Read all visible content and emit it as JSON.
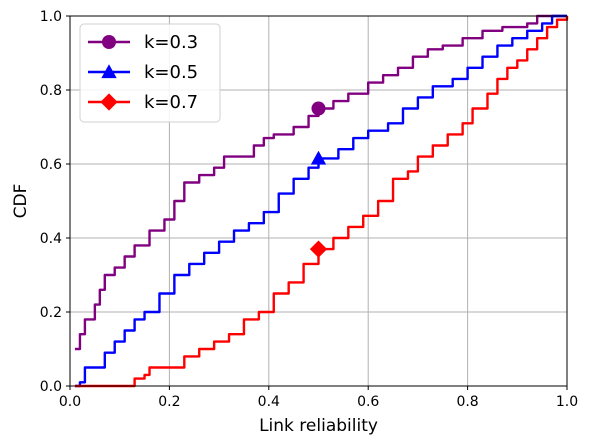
{
  "chart_data": {
    "type": "line",
    "xlabel": "Link reliability",
    "ylabel": "CDF",
    "xlim": [
      0.0,
      1.0
    ],
    "ylim": [
      0.0,
      1.0
    ],
    "x_ticks": [
      "0.0",
      "0.2",
      "0.4",
      "0.6",
      "0.8",
      "1.0"
    ],
    "y_ticks": [
      "0.0",
      "0.2",
      "0.4",
      "0.6",
      "0.8",
      "1.0"
    ],
    "grid": true,
    "legend_position": "top-left",
    "series": [
      {
        "name": "k=0.3",
        "color": "#800080",
        "marker": "circle",
        "marker_point": [
          0.5,
          0.75
        ],
        "points": [
          [
            0.01,
            0.1
          ],
          [
            0.02,
            0.14
          ],
          [
            0.03,
            0.18
          ],
          [
            0.05,
            0.22
          ],
          [
            0.06,
            0.26
          ],
          [
            0.07,
            0.3
          ],
          [
            0.09,
            0.32
          ],
          [
            0.11,
            0.35
          ],
          [
            0.13,
            0.38
          ],
          [
            0.16,
            0.42
          ],
          [
            0.19,
            0.45
          ],
          [
            0.21,
            0.5
          ],
          [
            0.23,
            0.55
          ],
          [
            0.26,
            0.57
          ],
          [
            0.29,
            0.59
          ],
          [
            0.31,
            0.62
          ],
          [
            0.35,
            0.62
          ],
          [
            0.37,
            0.65
          ],
          [
            0.39,
            0.67
          ],
          [
            0.41,
            0.68
          ],
          [
            0.45,
            0.7
          ],
          [
            0.48,
            0.73
          ],
          [
            0.5,
            0.75
          ],
          [
            0.53,
            0.77
          ],
          [
            0.56,
            0.79
          ],
          [
            0.6,
            0.82
          ],
          [
            0.63,
            0.84
          ],
          [
            0.66,
            0.86
          ],
          [
            0.69,
            0.89
          ],
          [
            0.72,
            0.91
          ],
          [
            0.75,
            0.92
          ],
          [
            0.79,
            0.94
          ],
          [
            0.83,
            0.96
          ],
          [
            0.87,
            0.97
          ],
          [
            0.92,
            0.98
          ],
          [
            0.94,
            1.0
          ],
          [
            1.0,
            1.0
          ]
        ]
      },
      {
        "name": "k=0.5",
        "color": "#0000ff",
        "marker": "triangle",
        "marker_point": [
          0.5,
          0.615
        ],
        "points": [
          [
            0.01,
            0.0
          ],
          [
            0.02,
            0.01
          ],
          [
            0.03,
            0.05
          ],
          [
            0.05,
            0.05
          ],
          [
            0.07,
            0.09
          ],
          [
            0.09,
            0.12
          ],
          [
            0.11,
            0.15
          ],
          [
            0.13,
            0.18
          ],
          [
            0.15,
            0.2
          ],
          [
            0.18,
            0.25
          ],
          [
            0.21,
            0.3
          ],
          [
            0.24,
            0.33
          ],
          [
            0.27,
            0.36
          ],
          [
            0.3,
            0.39
          ],
          [
            0.33,
            0.42
          ],
          [
            0.36,
            0.44
          ],
          [
            0.39,
            0.47
          ],
          [
            0.42,
            0.52
          ],
          [
            0.45,
            0.56
          ],
          [
            0.48,
            0.59
          ],
          [
            0.5,
            0.615
          ],
          [
            0.54,
            0.64
          ],
          [
            0.57,
            0.67
          ],
          [
            0.6,
            0.69
          ],
          [
            0.64,
            0.71
          ],
          [
            0.67,
            0.75
          ],
          [
            0.7,
            0.78
          ],
          [
            0.73,
            0.81
          ],
          [
            0.77,
            0.83
          ],
          [
            0.8,
            0.86
          ],
          [
            0.83,
            0.89
          ],
          [
            0.86,
            0.92
          ],
          [
            0.89,
            0.94
          ],
          [
            0.92,
            0.96
          ],
          [
            0.95,
            0.98
          ],
          [
            0.97,
            1.0
          ],
          [
            1.0,
            1.0
          ]
        ]
      },
      {
        "name": "k=0.7",
        "color": "#ff0000",
        "marker": "diamond",
        "marker_point": [
          0.5,
          0.37
        ],
        "points": [
          [
            0.01,
            0.0
          ],
          [
            0.05,
            0.0
          ],
          [
            0.1,
            0.0
          ],
          [
            0.13,
            0.02
          ],
          [
            0.15,
            0.03
          ],
          [
            0.16,
            0.05
          ],
          [
            0.19,
            0.05
          ],
          [
            0.21,
            0.05
          ],
          [
            0.23,
            0.08
          ],
          [
            0.26,
            0.1
          ],
          [
            0.29,
            0.12
          ],
          [
            0.32,
            0.14
          ],
          [
            0.35,
            0.18
          ],
          [
            0.38,
            0.2
          ],
          [
            0.41,
            0.25
          ],
          [
            0.44,
            0.28
          ],
          [
            0.47,
            0.33
          ],
          [
            0.5,
            0.37
          ],
          [
            0.53,
            0.4
          ],
          [
            0.56,
            0.43
          ],
          [
            0.59,
            0.46
          ],
          [
            0.62,
            0.5
          ],
          [
            0.65,
            0.56
          ],
          [
            0.68,
            0.58
          ],
          [
            0.7,
            0.62
          ],
          [
            0.73,
            0.65
          ],
          [
            0.76,
            0.68
          ],
          [
            0.79,
            0.71
          ],
          [
            0.81,
            0.75
          ],
          [
            0.84,
            0.79
          ],
          [
            0.86,
            0.83
          ],
          [
            0.88,
            0.86
          ],
          [
            0.9,
            0.88
          ],
          [
            0.92,
            0.91
          ],
          [
            0.94,
            0.94
          ],
          [
            0.96,
            0.97
          ],
          [
            0.98,
            0.99
          ],
          [
            1.0,
            1.0
          ]
        ]
      }
    ]
  }
}
